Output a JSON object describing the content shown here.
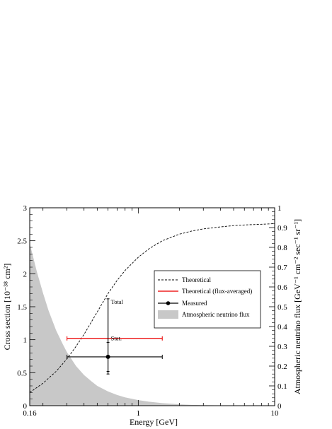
{
  "chart_data": {
    "type": "line",
    "xlabel": "Energy [GeV]",
    "ylabel": "Cross section [10⁻³⁸ cm²]",
    "y2label": "Atmospheric neutrino flux [GeV⁻¹ cm⁻² sec⁻¹ sr⁻¹]",
    "x_scale": "log",
    "xlim": [
      0.16,
      10
    ],
    "ylim": [
      0,
      3
    ],
    "y2lim": [
      0,
      1
    ],
    "x_ticks": [
      {
        "value": 0.16,
        "label": "0.16"
      },
      {
        "value": 1,
        "label": "1"
      },
      {
        "value": 10,
        "label": "10"
      }
    ],
    "y_ticks": [
      "0",
      "0.5",
      "1",
      "1.5",
      "2",
      "2.5",
      "3"
    ],
    "y2_ticks": [
      "0",
      "0.1",
      "0.2",
      "0.3",
      "0.4",
      "0.5",
      "0.6",
      "0.7",
      "0.8",
      "0.9",
      "1"
    ],
    "legend_position": "center-right",
    "series": [
      {
        "name": "Theoretical",
        "style": "dashed",
        "color": "#000000",
        "x": [
          0.16,
          0.2,
          0.25,
          0.3,
          0.35,
          0.4,
          0.5,
          0.6,
          0.7,
          0.8,
          1.0,
          1.2,
          1.5,
          2.0,
          2.5,
          3.0,
          4.0,
          5.0,
          6.0,
          8.0,
          10.0
        ],
        "y": [
          0.2,
          0.34,
          0.52,
          0.71,
          0.9,
          1.08,
          1.42,
          1.7,
          1.9,
          2.05,
          2.25,
          2.38,
          2.5,
          2.6,
          2.65,
          2.68,
          2.71,
          2.73,
          2.74,
          2.75,
          2.76
        ]
      },
      {
        "name": "Theoretical (flux-averaged)",
        "style": "solid",
        "color": "#ee2222",
        "x": [
          0.3,
          1.5
        ],
        "y": [
          1.02,
          1.02
        ]
      },
      {
        "name": "Measured",
        "style": "point",
        "color": "#000000",
        "x": 0.6,
        "y": 0.74,
        "x_err": [
          0.3,
          1.5
        ],
        "y_err_total": [
          0.48,
          1.62
        ],
        "y_err_stat": [
          0.52,
          0.96
        ],
        "annotations": [
          "Total",
          "Stat."
        ]
      },
      {
        "name": "Atmospheric neutrino flux",
        "style": "filled",
        "color": "#c8c8c8",
        "axis": "right",
        "x": [
          0.16,
          0.18,
          0.2,
          0.22,
          0.25,
          0.28,
          0.3,
          0.35,
          0.4,
          0.45,
          0.5,
          0.6,
          0.7,
          0.8,
          1.0,
          1.2,
          1.5,
          2.0,
          2.5,
          3.0,
          4.0,
          5.0,
          10.0
        ],
        "y": [
          0.82,
          0.68,
          0.57,
          0.48,
          0.38,
          0.31,
          0.27,
          0.2,
          0.155,
          0.125,
          0.1,
          0.072,
          0.054,
          0.042,
          0.028,
          0.02,
          0.013,
          0.007,
          0.004,
          0.0025,
          0.0012,
          0.0006,
          0.0001
        ]
      }
    ]
  }
}
